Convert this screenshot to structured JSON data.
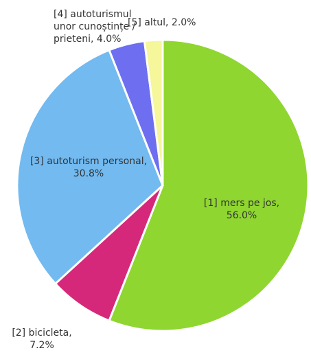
{
  "chart_data": {
    "type": "pie",
    "categories": [
      "[1] mers pe jos,",
      "[2] bicicleta,",
      "[3] autoturism personal,",
      "[4] autoturismul unor cunoștințe / prieteni,",
      "[5] altul,"
    ],
    "values": [
      56.0,
      7.2,
      30.8,
      4.0,
      2.0
    ],
    "value_labels": [
      "56.0%",
      "7.2%",
      "30.8%",
      "4.0%",
      "2.0%"
    ],
    "colors": [
      "#8fd630",
      "#d6287a",
      "#72baf0",
      "#6d6ff0",
      "#f6f69a"
    ]
  }
}
